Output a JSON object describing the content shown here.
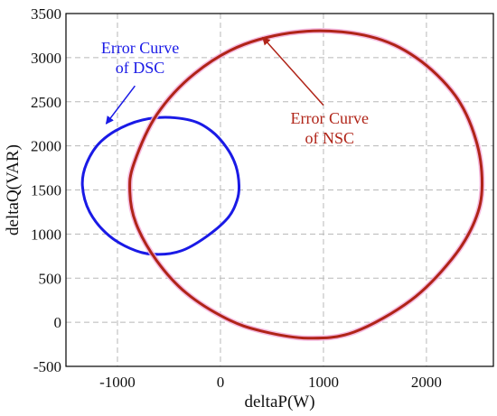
{
  "chart_data": {
    "type": "line",
    "xlabel": "deltaP(W)",
    "ylabel": "deltaQ(VAR)",
    "xlim": [
      -1500,
      2650
    ],
    "ylim": [
      -500,
      3500
    ],
    "xticks": [
      -1000,
      0,
      1000,
      2000
    ],
    "yticks": [
      -500,
      0,
      500,
      1000,
      1500,
      2000,
      2500,
      3000,
      3500
    ],
    "grid": true,
    "series": [
      {
        "name": "Error Curve of DSC",
        "color": "#1a1ae6",
        "points": [
          [
            180,
            1550
          ],
          [
            150,
            1770
          ],
          [
            60,
            1980
          ],
          [
            -90,
            2170
          ],
          [
            -290,
            2290
          ],
          [
            -600,
            2320
          ],
          [
            -900,
            2240
          ],
          [
            -1160,
            2050
          ],
          [
            -1300,
            1800
          ],
          [
            -1340,
            1550
          ],
          [
            -1270,
            1250
          ],
          [
            -1080,
            980
          ],
          [
            -820,
            810
          ],
          [
            -600,
            770
          ],
          [
            -380,
            810
          ],
          [
            -150,
            960
          ],
          [
            70,
            1180
          ],
          [
            160,
            1380
          ],
          [
            180,
            1550
          ]
        ]
      },
      {
        "name": "Error Curve of NSC",
        "color": "#b02418",
        "points": [
          [
            2540,
            1550
          ],
          [
            2480,
            2070
          ],
          [
            2280,
            2570
          ],
          [
            1900,
            3000
          ],
          [
            1450,
            3240
          ],
          [
            840,
            3300
          ],
          [
            230,
            3150
          ],
          [
            -250,
            2820
          ],
          [
            -620,
            2350
          ],
          [
            -840,
            1800
          ],
          [
            -880,
            1480
          ],
          [
            -820,
            1120
          ],
          [
            -620,
            700
          ],
          [
            -330,
            330
          ],
          [
            60,
            40
          ],
          [
            400,
            -100
          ],
          [
            850,
            -180
          ],
          [
            1300,
            -110
          ],
          [
            1850,
            250
          ],
          [
            2250,
            720
          ],
          [
            2470,
            1150
          ],
          [
            2540,
            1550
          ]
        ]
      }
    ],
    "annotations": [
      {
        "text_lines": [
          "Error Curve",
          "of DSC"
        ],
        "color": "#1a1ae6",
        "text_anchor_data": [
          -780,
          3050
        ],
        "arrow_tail_data": [
          -830,
          2680
        ],
        "arrow_head_data": [
          -1110,
          2250
        ]
      },
      {
        "text_lines": [
          "Error Curve",
          "of NSC"
        ],
        "color": "#b02418",
        "text_anchor_data": [
          1060,
          2250
        ],
        "arrow_tail_data": [
          1000,
          2460
        ],
        "arrow_head_data": [
          410,
          3230
        ]
      }
    ]
  }
}
